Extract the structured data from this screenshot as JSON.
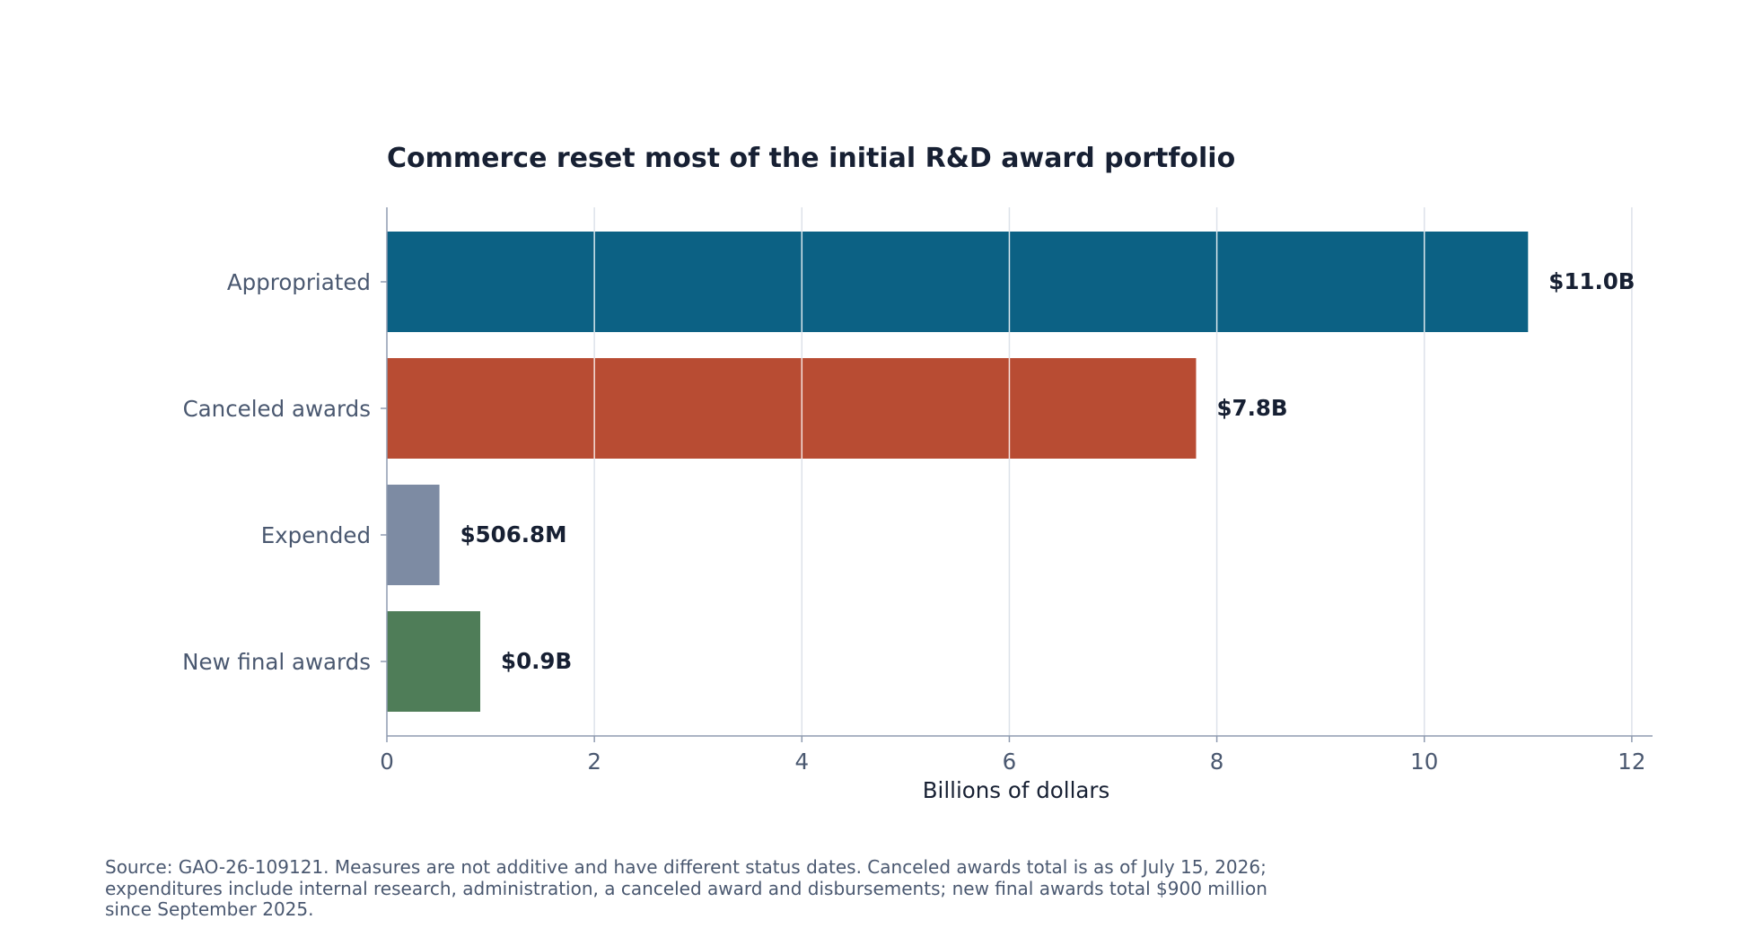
{
  "chart_data": {
    "type": "bar",
    "orientation": "horizontal",
    "title": "Commerce reset most of the initial R&D award portfolio",
    "xlabel": "Billions of dollars",
    "ylabel": "",
    "categories": [
      "Appropriated",
      "Canceled awards",
      "Expended",
      "New final awards"
    ],
    "values": [
      11.0,
      7.8,
      0.5068,
      0.9
    ],
    "value_labels": [
      "$11.0B",
      "$7.8B",
      "$506.8M",
      "$0.9B"
    ],
    "colors": [
      "#0c6184",
      "#b84c33",
      "#7d8ba3",
      "#4f7d58"
    ],
    "xlim": [
      0,
      12.2
    ],
    "xticks": [
      0,
      2,
      4,
      6,
      8,
      10,
      12
    ],
    "xtick_labels": [
      "0",
      "2",
      "4",
      "6",
      "8",
      "10",
      "12"
    ],
    "grid": "vertical",
    "legend": "none"
  },
  "source_note": "Source: GAO-26-109121. Measures are not additive and have different status dates. Canceled awards total is as of July 15, 2026; expenditures include internal research, administration, a canceled award and disbursements; new final awards total $900 million since September 2025."
}
